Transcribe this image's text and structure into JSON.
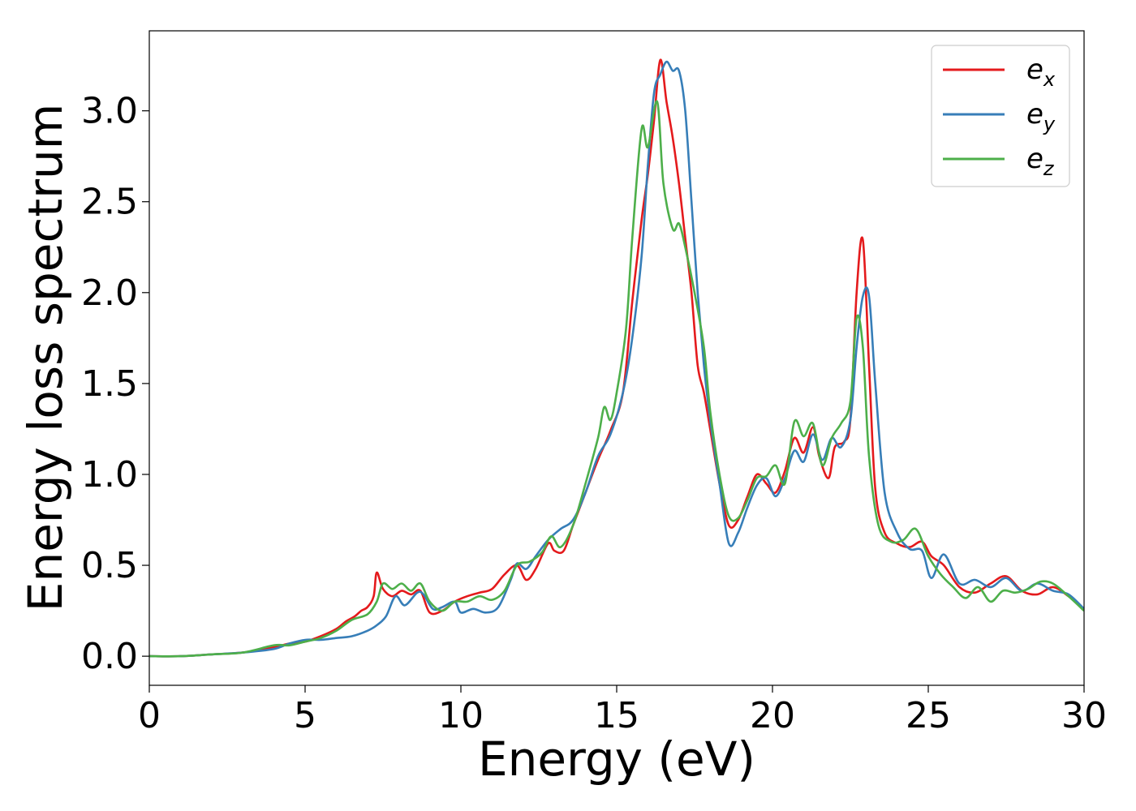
{
  "chart_data": {
    "type": "line",
    "title": "",
    "xlabel": "Energy (eV)",
    "ylabel": "Energy loss spectrum",
    "xlim": [
      0,
      30
    ],
    "ylim": [
      -0.16,
      3.44
    ],
    "xticks": [
      "0",
      "5",
      "10",
      "15",
      "20",
      "25",
      "30"
    ],
    "yticks": [
      "0.0",
      "0.5",
      "1.0",
      "1.5",
      "2.0",
      "2.5",
      "3.0"
    ],
    "grid": false,
    "legend_position": "top-right",
    "colors": {
      "e_x": "#e41a1c",
      "e_y": "#377eb8",
      "e_z": "#4daf4a"
    },
    "series": [
      {
        "name": "e_x",
        "color": "#e41a1c",
        "x": [
          0,
          1,
          2,
          3,
          4,
          4.5,
          5,
          5.5,
          6,
          6.3,
          6.6,
          6.8,
          7.0,
          7.2,
          7.3,
          7.5,
          7.8,
          8.1,
          8.4,
          8.7,
          9.0,
          9.4,
          9.8,
          10.2,
          10.6,
          11.0,
          11.4,
          11.8,
          12.1,
          12.4,
          12.8,
          13.0,
          13.3,
          13.6,
          14.0,
          14.4,
          14.8,
          15.2,
          15.5,
          15.8,
          16.0,
          16.2,
          16.4,
          16.6,
          16.8,
          17.0,
          17.2,
          17.4,
          17.6,
          17.8,
          18.0,
          18.3,
          18.6,
          18.9,
          19.2,
          19.5,
          19.8,
          20.1,
          20.4,
          20.7,
          21.0,
          21.3,
          21.5,
          21.8,
          22.0,
          22.3,
          22.5,
          22.7,
          22.9,
          23.1,
          23.3,
          23.6,
          24.0,
          24.4,
          24.8,
          25.1,
          25.5,
          26.0,
          26.5,
          27.0,
          27.5,
          28.0,
          28.5,
          29.0,
          29.5,
          30.0
        ],
        "y": [
          0.0,
          0.0,
          0.01,
          0.02,
          0.05,
          0.07,
          0.08,
          0.11,
          0.15,
          0.19,
          0.22,
          0.25,
          0.27,
          0.33,
          0.46,
          0.37,
          0.33,
          0.36,
          0.34,
          0.36,
          0.24,
          0.25,
          0.3,
          0.33,
          0.35,
          0.37,
          0.45,
          0.5,
          0.42,
          0.48,
          0.62,
          0.58,
          0.58,
          0.72,
          0.9,
          1.08,
          1.24,
          1.45,
          1.95,
          2.4,
          2.65,
          2.95,
          3.28,
          3.05,
          2.85,
          2.6,
          2.3,
          2.0,
          1.6,
          1.45,
          1.25,
          0.95,
          0.72,
          0.75,
          0.88,
          1.0,
          0.95,
          0.9,
          1.02,
          1.2,
          1.12,
          1.26,
          1.1,
          0.98,
          1.15,
          1.18,
          1.3,
          2.0,
          2.29,
          1.6,
          0.92,
          0.68,
          0.62,
          0.6,
          0.63,
          0.55,
          0.5,
          0.38,
          0.35,
          0.4,
          0.44,
          0.36,
          0.34,
          0.38,
          0.33,
          0.26
        ]
      },
      {
        "name": "e_y",
        "color": "#377eb8",
        "x": [
          0,
          1,
          2,
          3,
          4,
          4.5,
          5,
          5.5,
          6,
          6.5,
          7.0,
          7.3,
          7.6,
          7.9,
          8.2,
          8.6,
          8.8,
          9.1,
          9.4,
          9.8,
          10.0,
          10.4,
          10.8,
          11.2,
          11.6,
          11.8,
          12.1,
          12.4,
          12.8,
          13.2,
          13.6,
          14.0,
          14.4,
          14.8,
          15.2,
          15.5,
          15.8,
          16.0,
          16.2,
          16.4,
          16.6,
          16.8,
          17.0,
          17.2,
          17.4,
          17.6,
          17.8,
          18.0,
          18.3,
          18.6,
          18.9,
          19.2,
          19.5,
          19.8,
          20.1,
          20.4,
          20.7,
          21.0,
          21.3,
          21.6,
          21.9,
          22.2,
          22.5,
          22.7,
          22.9,
          23.1,
          23.3,
          23.6,
          24.0,
          24.4,
          24.8,
          25.1,
          25.5,
          26.0,
          26.5,
          27.0,
          27.5,
          28.0,
          28.5,
          29.0,
          29.5,
          30.0
        ],
        "y": [
          0.0,
          0.0,
          0.01,
          0.02,
          0.04,
          0.07,
          0.09,
          0.09,
          0.1,
          0.11,
          0.14,
          0.17,
          0.22,
          0.33,
          0.28,
          0.35,
          0.34,
          0.26,
          0.27,
          0.3,
          0.24,
          0.26,
          0.24,
          0.27,
          0.42,
          0.51,
          0.48,
          0.55,
          0.64,
          0.7,
          0.75,
          0.9,
          1.1,
          1.22,
          1.45,
          1.75,
          2.2,
          2.7,
          3.1,
          3.2,
          3.27,
          3.22,
          3.22,
          3.0,
          2.5,
          2.0,
          1.6,
          1.3,
          0.95,
          0.62,
          0.68,
          0.82,
          0.94,
          0.98,
          0.88,
          0.98,
          1.13,
          1.07,
          1.22,
          1.08,
          1.2,
          1.15,
          1.3,
          1.7,
          1.98,
          1.98,
          1.5,
          0.9,
          0.68,
          0.59,
          0.58,
          0.43,
          0.56,
          0.4,
          0.42,
          0.38,
          0.43,
          0.36,
          0.4,
          0.36,
          0.34,
          0.26
        ]
      },
      {
        "name": "e_z",
        "color": "#4daf4a",
        "x": [
          0,
          1,
          2,
          3,
          4,
          4.5,
          5,
          5.5,
          6,
          6.5,
          7.0,
          7.3,
          7.5,
          7.8,
          8.1,
          8.4,
          8.7,
          9.0,
          9.4,
          9.8,
          10.2,
          10.6,
          11.0,
          11.4,
          11.8,
          12.2,
          12.6,
          12.9,
          13.2,
          13.6,
          14.0,
          14.4,
          14.6,
          14.8,
          15.0,
          15.3,
          15.5,
          15.8,
          16.0,
          16.3,
          16.5,
          16.8,
          17.0,
          17.2,
          17.5,
          17.8,
          18.0,
          18.3,
          18.6,
          18.9,
          19.2,
          19.5,
          19.8,
          20.1,
          20.4,
          20.7,
          21.0,
          21.3,
          21.6,
          21.9,
          22.2,
          22.5,
          22.7,
          22.9,
          23.1,
          23.4,
          23.8,
          24.2,
          24.6,
          25.0,
          25.4,
          25.8,
          26.2,
          26.6,
          27.0,
          27.4,
          27.8,
          28.2,
          28.6,
          29.0,
          29.5,
          30.0
        ],
        "y": [
          0.0,
          0.0,
          0.01,
          0.02,
          0.06,
          0.06,
          0.08,
          0.1,
          0.14,
          0.2,
          0.23,
          0.3,
          0.4,
          0.37,
          0.4,
          0.36,
          0.4,
          0.3,
          0.25,
          0.3,
          0.3,
          0.33,
          0.31,
          0.36,
          0.5,
          0.52,
          0.57,
          0.66,
          0.6,
          0.72,
          0.95,
          1.2,
          1.37,
          1.3,
          1.45,
          1.8,
          2.3,
          2.9,
          2.8,
          3.05,
          2.6,
          2.35,
          2.38,
          2.25,
          2.0,
          1.7,
          1.35,
          1.0,
          0.77,
          0.76,
          0.86,
          0.98,
          0.99,
          1.05,
          0.95,
          1.29,
          1.21,
          1.28,
          1.05,
          1.2,
          1.28,
          1.4,
          1.86,
          1.7,
          1.1,
          0.72,
          0.63,
          0.64,
          0.7,
          0.55,
          0.45,
          0.38,
          0.32,
          0.38,
          0.3,
          0.36,
          0.35,
          0.37,
          0.41,
          0.4,
          0.33,
          0.25
        ]
      }
    ]
  },
  "legend": {
    "entries": [
      {
        "base": "e",
        "sub": "x",
        "color": "#e41a1c"
      },
      {
        "base": "e",
        "sub": "y",
        "color": "#377eb8"
      },
      {
        "base": "e",
        "sub": "z",
        "color": "#4daf4a"
      }
    ]
  }
}
